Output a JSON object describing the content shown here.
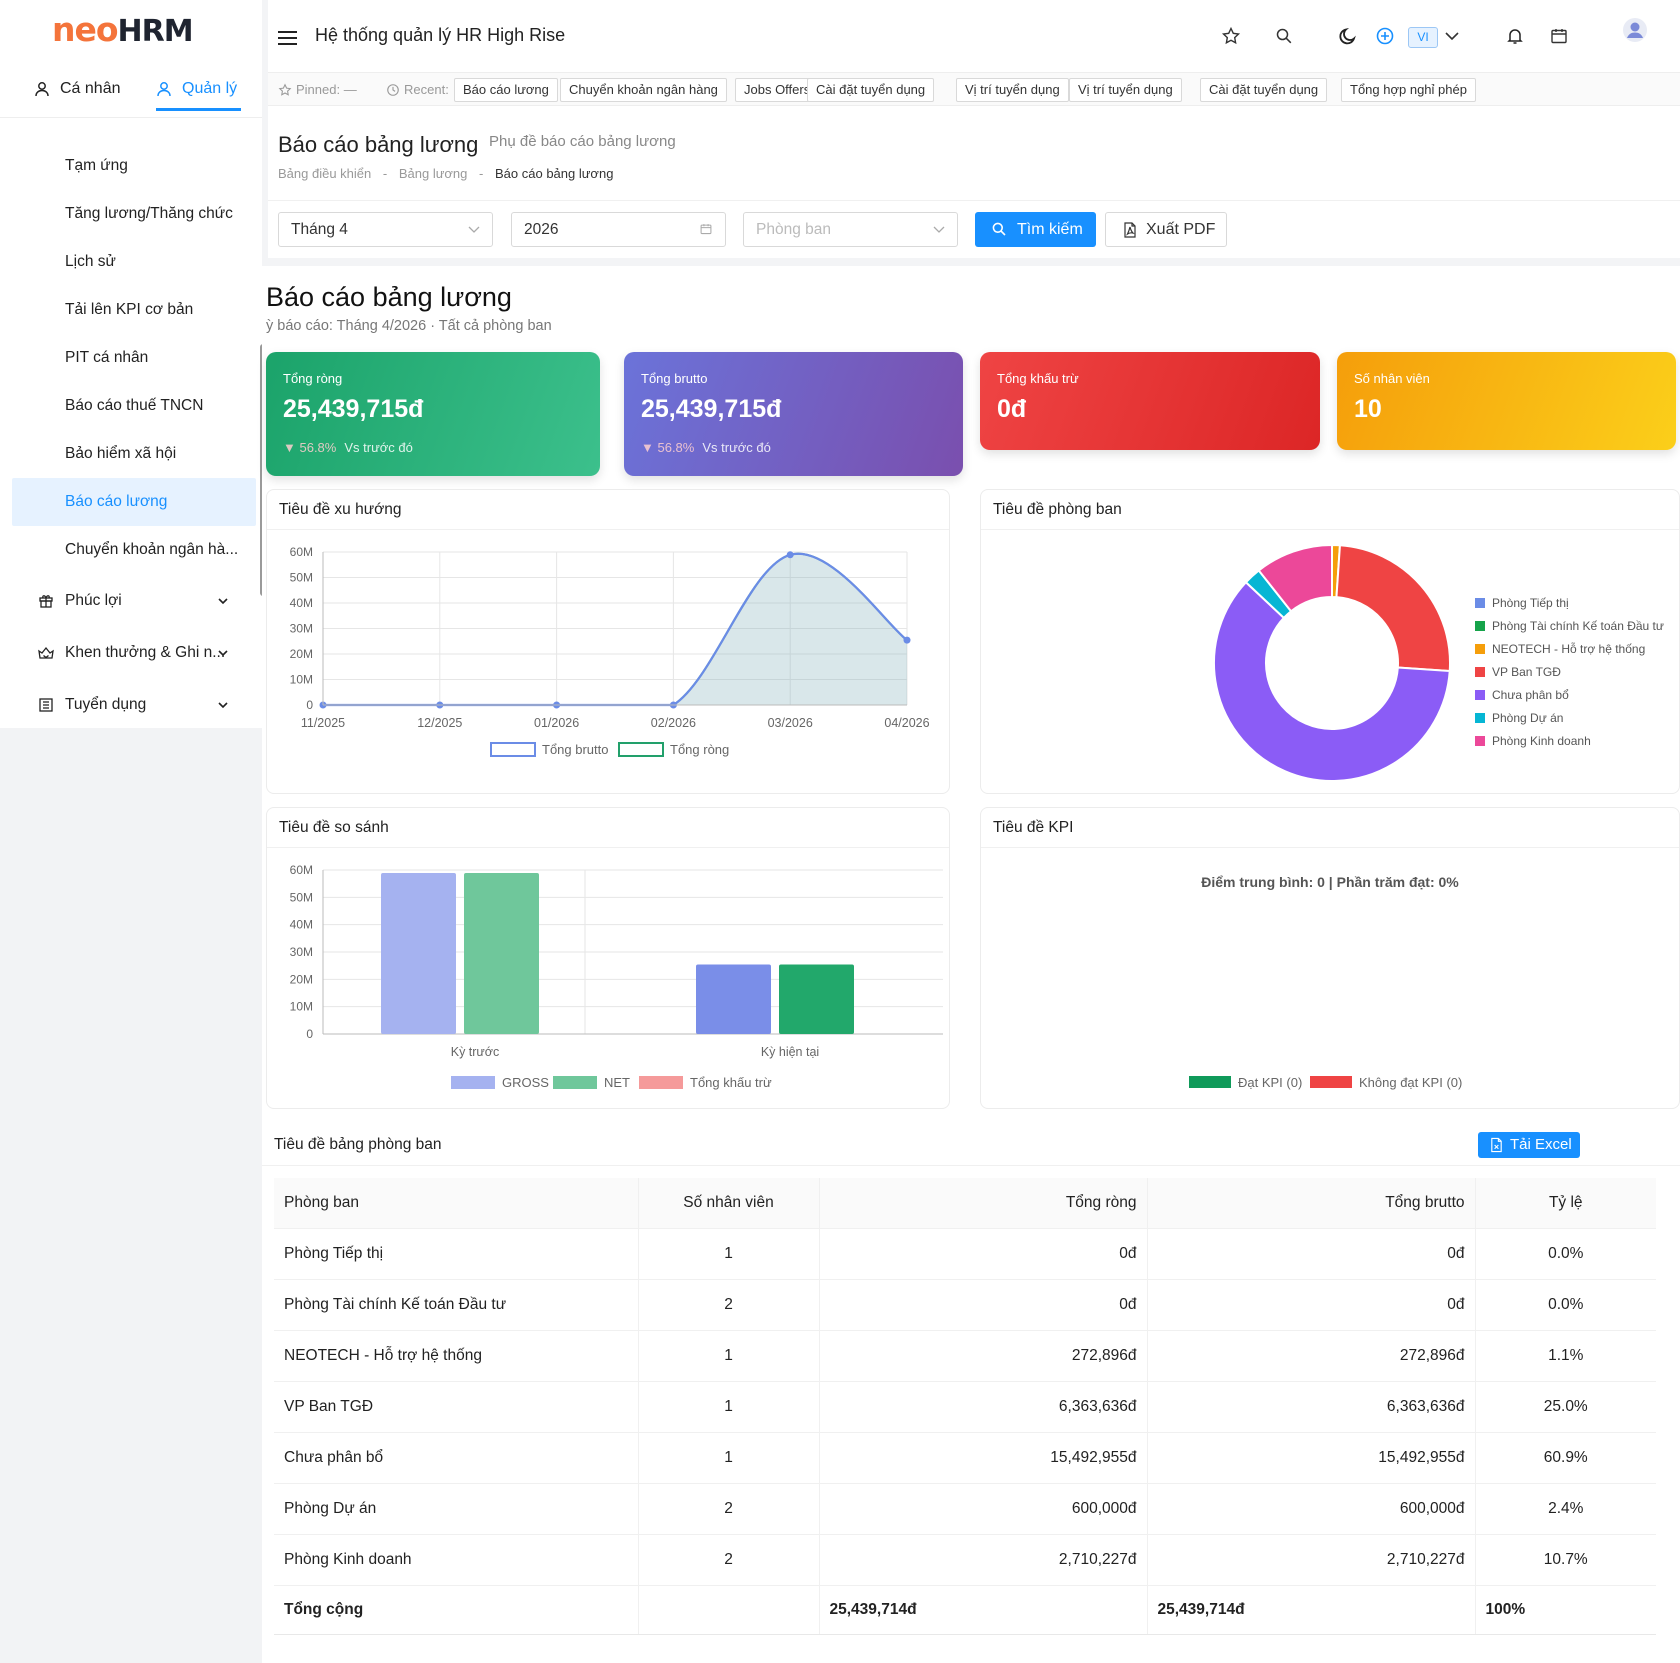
{
  "brand": {
    "neo": "neo",
    "hrm": "HRM"
  },
  "sidebar": {
    "tabs": [
      {
        "label": "Cá nhân"
      },
      {
        "label": "Quản lý"
      }
    ],
    "sub_items": [
      {
        "label": "Tạm ứng"
      },
      {
        "label": "Tăng lương/Thăng chức"
      },
      {
        "label": "Lịch sử"
      },
      {
        "label": "Tải lên KPI cơ bản"
      },
      {
        "label": "PIT cá nhân"
      },
      {
        "label": "Báo cáo thuế TNCN"
      },
      {
        "label": "Bảo hiểm xã hội"
      },
      {
        "label": "Báo cáo lương"
      },
      {
        "label": "Chuyển khoản ngân hà..."
      }
    ],
    "groups": [
      {
        "label": "Phúc lợi"
      },
      {
        "label": "Khen thưởng & Ghi n..."
      },
      {
        "label": "Tuyển dụng"
      }
    ]
  },
  "topbar": {
    "title": "Hệ thống quản lý HR High Rise",
    "lang": "VI"
  },
  "recent": {
    "pinned_label": "Pinned: —",
    "recent_label": "Recent:",
    "items": [
      "Báo cáo lương",
      "Chuyển khoản ngân hàng",
      "Jobs Offers",
      "Cài đặt tuyển dụng",
      "Vị trí tuyển dụng",
      "Vị trí tuyển dụng",
      "Cài đặt tuyển dụng",
      "Tổng hợp nghỉ phép"
    ]
  },
  "page": {
    "title": "Báo cáo bảng lương",
    "subtitle": "Phụ đề báo cáo bảng lương",
    "breadcrumb": [
      "Bảng điều khiển",
      "Bảng lương",
      "Báo cáo bảng lương"
    ]
  },
  "filters": {
    "month": "Tháng 4",
    "year": "2026",
    "department_placeholder": "Phòng ban",
    "search_label": "Tìm kiếm",
    "export_label": "Xuất PDF"
  },
  "report": {
    "title": "Báo cáo bảng lương",
    "subtitle": "ỳ báo cáo: Tháng 4/2026 · Tất cả phòng ban"
  },
  "stats": [
    {
      "label": "Tổng ròng",
      "value": "25,439,715đ",
      "change": "▼ 56.8%",
      "change_note": "Vs trước đó",
      "color_from": "#1ba36a",
      "color_to": "#3cc08c"
    },
    {
      "label": "Tổng brutto",
      "value": "25,439,715đ",
      "change": "▼ 56.8%",
      "change_note": "Vs trước đó",
      "color_from": "#6b73d9",
      "color_to": "#7a4fae"
    },
    {
      "label": "Tổng khấu trừ",
      "value": "0đ",
      "color_from": "#ef4444",
      "color_to": "#dc2626"
    },
    {
      "label": "Số nhân viên",
      "value": "10",
      "color_from": "#f59e0b",
      "color_to": "#fbcf1a"
    }
  ],
  "charts": {
    "trend_title": "Tiêu đề xu hướng",
    "dept_title": "Tiêu đề phòng ban",
    "compare_title": "Tiêu đề so sánh",
    "kpi_title": "Tiêu đề KPI",
    "kpi_text": "Điểm trung bình: 0 | Phần trăm đạt: 0%",
    "kpi_legend": [
      {
        "name": "Đạt KPI (0)",
        "color": "#109a5a"
      },
      {
        "name": "Không đạt KPI (0)",
        "color": "#ef4444"
      }
    ]
  },
  "chart_data": [
    {
      "type": "line",
      "ylim": [
        0,
        60000000
      ],
      "yticks": [
        "0",
        "10M",
        "20M",
        "30M",
        "40M",
        "50M",
        "60M"
      ],
      "x": [
        "11/2025",
        "12/2025",
        "01/2026",
        "02/2026",
        "03/2026",
        "04/2026"
      ],
      "series": [
        {
          "name": "Tổng brutto",
          "values": [
            0,
            0,
            0,
            0,
            58900000,
            25439715
          ],
          "color": "#6b8ce6"
        },
        {
          "name": "Tổng ròng",
          "values": [
            0,
            0,
            0,
            0,
            58900000,
            25439715
          ],
          "color": "#22a06b"
        }
      ]
    },
    {
      "type": "pie",
      "legend": "right",
      "slices": [
        {
          "name": "Phòng Tiếp thị",
          "value": 0,
          "color": "#6b8ce6"
        },
        {
          "name": "Phòng Tài chính Kế toán Đầu tư",
          "value": 0,
          "color": "#16a34a"
        },
        {
          "name": "NEOTECH - Hỗ trợ hệ thống",
          "value": 272896,
          "color": "#f59e0b"
        },
        {
          "name": "VP Ban TGĐ",
          "value": 6363636,
          "color": "#ef4444"
        },
        {
          "name": "Chưa phân bổ",
          "value": 15492955,
          "color": "#8b5cf6"
        },
        {
          "name": "Phòng Dự án",
          "value": 600000,
          "color": "#06b6d4"
        },
        {
          "name": "Phòng Kinh doanh",
          "value": 2710227,
          "color": "#ec4899"
        }
      ]
    },
    {
      "type": "bar",
      "ylim": [
        0,
        60000000
      ],
      "yticks": [
        "0",
        "10M",
        "20M",
        "30M",
        "40M",
        "50M",
        "60M"
      ],
      "categories": [
        "Kỳ trước",
        "Kỳ hiện tại"
      ],
      "series": [
        {
          "name": "GROSS",
          "values": [
            58900000,
            25439715
          ],
          "color": "#a5b2f0",
          "color2": "#7a8ee8"
        },
        {
          "name": "NET",
          "values": [
            58900000,
            25439715
          ],
          "color": "#6fc79b",
          "color2": "#22a86b"
        },
        {
          "name": "Tổng khấu trừ",
          "values": [
            0,
            0
          ],
          "color": "#f59a9a",
          "color2": "#ef4444"
        }
      ]
    }
  ],
  "table": {
    "title": "Tiêu đề bảng phòng ban",
    "excel_label": "Tải Excel",
    "headers": [
      "Phòng ban",
      "Số nhân viên",
      "Tổng ròng",
      "Tổng brutto",
      "Tỷ lệ"
    ],
    "rows": [
      [
        "Phòng Tiếp thị",
        "1",
        "0đ",
        "0đ",
        "0.0%"
      ],
      [
        "Phòng Tài chính Kế toán Đầu tư",
        "2",
        "0đ",
        "0đ",
        "0.0%"
      ],
      [
        "NEOTECH - Hỗ trợ hệ thống",
        "1",
        "272,896đ",
        "272,896đ",
        "1.1%"
      ],
      [
        "VP Ban TGĐ",
        "1",
        "6,363,636đ",
        "6,363,636đ",
        "25.0%"
      ],
      [
        "Chưa phân bổ",
        "1",
        "15,492,955đ",
        "15,492,955đ",
        "60.9%"
      ],
      [
        "Phòng Dự án",
        "2",
        "600,000đ",
        "600,000đ",
        "2.4%"
      ],
      [
        "Phòng Kinh doanh",
        "2",
        "2,710,227đ",
        "2,710,227đ",
        "10.7%"
      ]
    ],
    "total": [
      "Tổng cộng",
      "",
      "25,439,714đ",
      "25,439,714đ",
      "100%"
    ]
  }
}
